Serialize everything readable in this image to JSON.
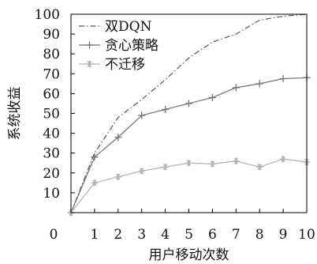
{
  "chart_data": {
    "type": "line",
    "xlabel": "用户移动次数",
    "ylabel": "系统收益",
    "xlim": [
      0,
      10
    ],
    "ylim": [
      0,
      100
    ],
    "x_ticks": [
      0,
      1,
      2,
      3,
      4,
      5,
      6,
      7,
      8,
      9,
      10
    ],
    "y_ticks": [
      10,
      20,
      30,
      40,
      50,
      60,
      70,
      80,
      90,
      100
    ],
    "legend_position": "top-left",
    "grid": false,
    "x": [
      0,
      1,
      2,
      3,
      4,
      5,
      6,
      7,
      8,
      9,
      10
    ],
    "series": [
      {
        "name": "双DQN",
        "values": [
          0,
          30,
          48,
          57,
          67,
          78,
          86,
          90,
          97,
          99,
          100
        ],
        "color": "#555555",
        "line_style": "dash-dot",
        "marker": "none"
      },
      {
        "name": "贪心策略",
        "values": [
          0,
          28,
          38,
          49,
          52,
          55,
          58,
          63,
          65,
          67.5,
          68
        ],
        "color": "#707070",
        "line_style": "solid",
        "marker": "plus"
      },
      {
        "name": "不迁移",
        "values": [
          0,
          15,
          18,
          21,
          23,
          25,
          24.5,
          26,
          23,
          27,
          25.5
        ],
        "color": "#b0b0b0",
        "line_style": "solid",
        "marker": "asterisk"
      }
    ]
  }
}
